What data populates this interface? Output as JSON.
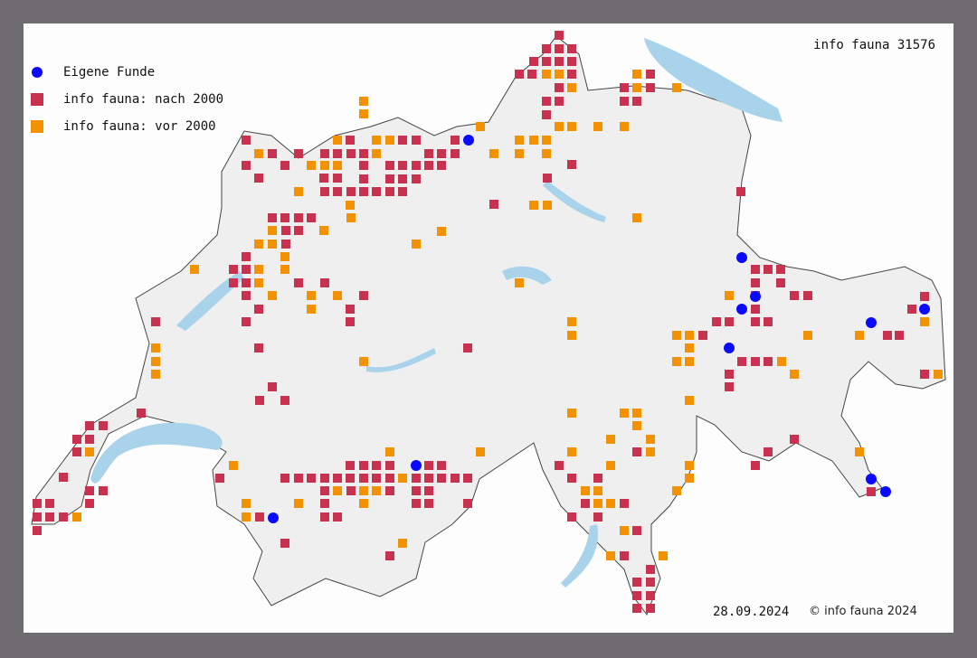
{
  "header": {
    "title": "info fauna 31576"
  },
  "legend": {
    "items": [
      {
        "label": "Eigene Funde",
        "color": "#0a0aff",
        "shape": "circle"
      },
      {
        "label": "info fauna: nach 2000",
        "color": "#c8324f",
        "shape": "square"
      },
      {
        "label": "info fauna: vor 2000",
        "color": "#f39200",
        "shape": "square"
      }
    ]
  },
  "footer": {
    "date": "28.09.2024",
    "copyright": "© info fauna 2024"
  },
  "colors": {
    "frame": "#6e6c70",
    "land": "#efefef",
    "lake": "#a8d3ea",
    "border": "#444444"
  }
}
